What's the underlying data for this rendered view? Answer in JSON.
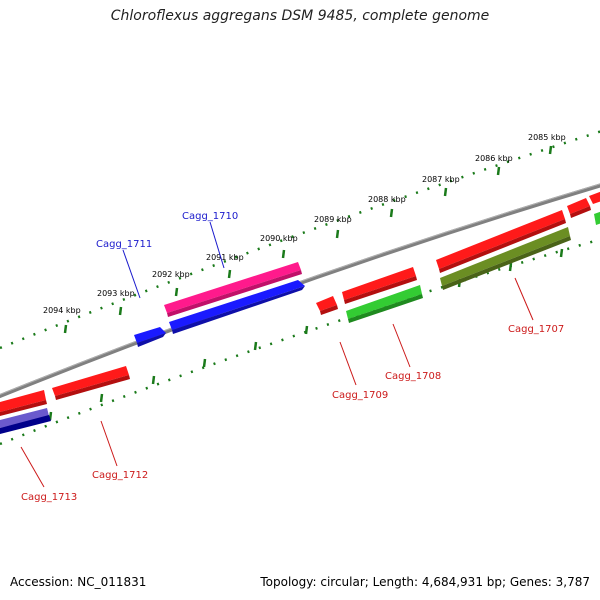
{
  "title": "Chloroflexus aggregans DSM 9485, complete genome",
  "footer": {
    "accession": "Accession: NC_011831",
    "summary": "Topology: circular; Length: 4,684,931 bp; Genes: 3,787"
  },
  "colors": {
    "backbone": "#808080",
    "ruler": "#1a7a1a",
    "label_forward": "#1a1acc",
    "label_reverse": "#cc1a1a"
  },
  "ruler_labels": [
    "2085 kbp",
    "2086 kbp",
    "2087 kbp",
    "2088 kbp",
    "2089 kbp",
    "2090 kbp",
    "2091 kbp",
    "2092 kbp",
    "2093 kbp",
    "2094 kbp"
  ],
  "gene_labels": [
    {
      "name": "Cagg_1710",
      "strand": "forward"
    },
    {
      "name": "Cagg_1711",
      "strand": "forward"
    },
    {
      "name": "Cagg_1707",
      "strand": "reverse"
    },
    {
      "name": "Cagg_1708",
      "strand": "reverse"
    },
    {
      "name": "Cagg_1709",
      "strand": "reverse"
    },
    {
      "name": "Cagg_1712",
      "strand": "reverse"
    },
    {
      "name": "Cagg_1713",
      "strand": "reverse"
    }
  ]
}
